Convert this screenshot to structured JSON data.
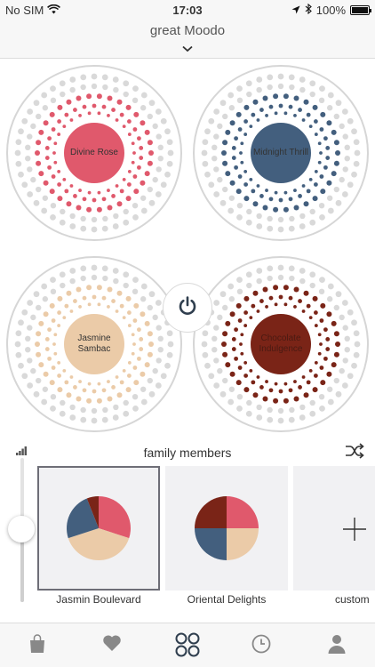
{
  "status_bar": {
    "carrier": "No SIM",
    "time": "17:03",
    "battery_percent": "100%",
    "icons": [
      "wifi-icon",
      "location-arrow-icon",
      "bluetooth-icon",
      "battery-icon"
    ]
  },
  "header": {
    "title": "great Moodo",
    "icon": "chevron-down-icon"
  },
  "diffuser": {
    "capsules": [
      {
        "name": "Divine Rose",
        "color": "#e0596c"
      },
      {
        "name": "Midnight Thrill",
        "color": "#435f7e"
      },
      {
        "name": "Jasmine Sambac",
        "color": "#ebcba8"
      },
      {
        "name": "Chocolate Indulgence",
        "color": "#7a2417"
      }
    ],
    "power_icon": "power-icon"
  },
  "family": {
    "title": "family members",
    "shuffle_icon": "shuffle-icon",
    "intensity_icon": "signal-bars-icon",
    "intensity_level": 0.52,
    "mixes": [
      {
        "name": "Jasmin Boulevard",
        "selected": true,
        "shares": [
          0.3,
          0.4,
          0.24,
          0.06
        ]
      },
      {
        "name": "Oriental Delights",
        "selected": false,
        "shares": [
          0.25,
          0.25,
          0.25,
          0.25
        ]
      },
      {
        "name": "custom",
        "selected": false,
        "icon": "plus-icon"
      }
    ]
  },
  "tab_bar": {
    "tabs": [
      {
        "id": "shop",
        "icon": "shopping-bag-icon",
        "active": false
      },
      {
        "id": "favorites",
        "icon": "heart-icon",
        "active": false
      },
      {
        "id": "capsules",
        "icon": "four-circles-icon",
        "active": true
      },
      {
        "id": "schedule",
        "icon": "clock-icon",
        "active": false
      },
      {
        "id": "profile",
        "icon": "user-icon",
        "active": false
      }
    ]
  },
  "colors": {
    "accent": "#2f3e4e",
    "rose": "#e0596c",
    "midnight": "#435f7e",
    "jasmine": "#ebcba8",
    "chocolate": "#7a2417",
    "dot_grey": "#d9d9d9"
  }
}
